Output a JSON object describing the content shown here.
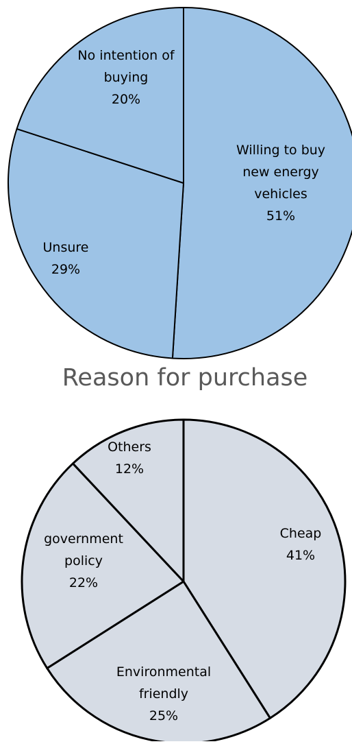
{
  "chart_data": [
    {
      "type": "pie",
      "title": "",
      "categories": [
        "Willing to buy new energy vehicles",
        "Unsure",
        "No intention of buying"
      ],
      "values": [
        51,
        29,
        20
      ],
      "labels": [
        [
          "Willing to buy",
          "new energy",
          "vehicles",
          "51%"
        ],
        [
          "Unsure",
          "29%"
        ],
        [
          "No intention of",
          "buying",
          "20%"
        ]
      ],
      "unit": "%",
      "colors": {
        "fill": "#9dc3e6",
        "stroke": "#000000",
        "text": "#000000"
      }
    },
    {
      "type": "pie",
      "title": "Reason for purchase",
      "categories": [
        "Cheap",
        "Environmental friendly",
        "government policy",
        "Others"
      ],
      "values": [
        41,
        25,
        22,
        12
      ],
      "labels": [
        [
          "Cheap",
          "41%"
        ],
        [
          "Environmental",
          "friendly",
          "25%"
        ],
        [
          "government",
          "policy",
          "22%"
        ],
        [
          "Others",
          "12%"
        ]
      ],
      "unit": "%",
      "colors": {
        "fill": "#d6dce5",
        "stroke": "#000000",
        "text": "#000000",
        "title": "#595959"
      }
    }
  ]
}
